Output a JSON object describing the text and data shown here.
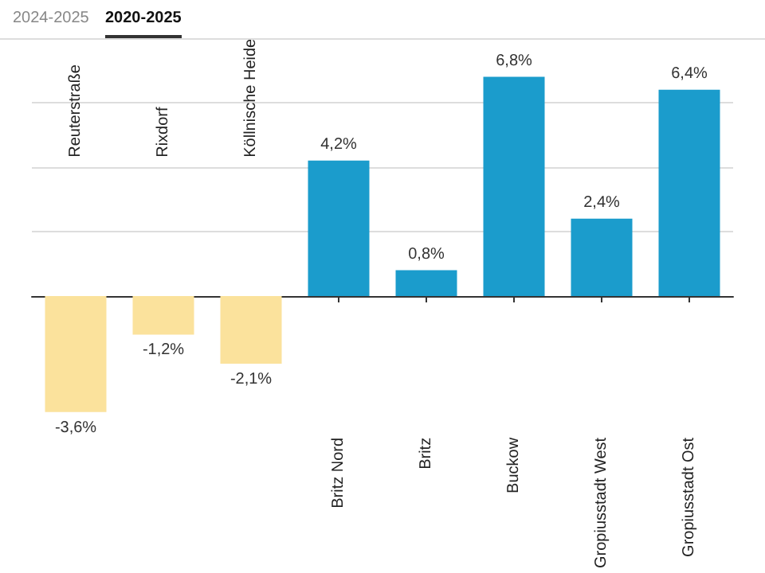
{
  "chart_data": {
    "type": "bar",
    "annotations": [
      "2024-2025",
      "2020-2025"
    ],
    "categories": [
      "Reuterstraße",
      "Rixdorf",
      "Köllnische Heide",
      "Britz Nord",
      "Britz",
      "Buckow",
      "Gropiusstadt West",
      "Gropiusstadt Ost"
    ],
    "values": [
      -3.6,
      -1.2,
      -2.1,
      4.2,
      0.8,
      6.8,
      2.4,
      6.4
    ],
    "colors": [
      "#fbe29c",
      "#fbe29c",
      "#fbe29c",
      "#1b9ccc",
      "#1b9ccc",
      "#1b9ccc",
      "#1b9ccc",
      "#1b9ccc"
    ],
    "value_labels": [
      "-3,6%",
      "-1,2%",
      "-2,1%",
      "4,2%",
      "0,8%",
      "6,8%",
      "2,4%",
      "6,4%"
    ],
    "yticks": [
      {
        "value": 2,
        "label": null
      },
      {
        "value": 4,
        "label": null
      },
      {
        "value": 6,
        "label": null
      },
      {
        "value": 8,
        "label": null
      }
    ],
    "grid": "y"
  }
}
